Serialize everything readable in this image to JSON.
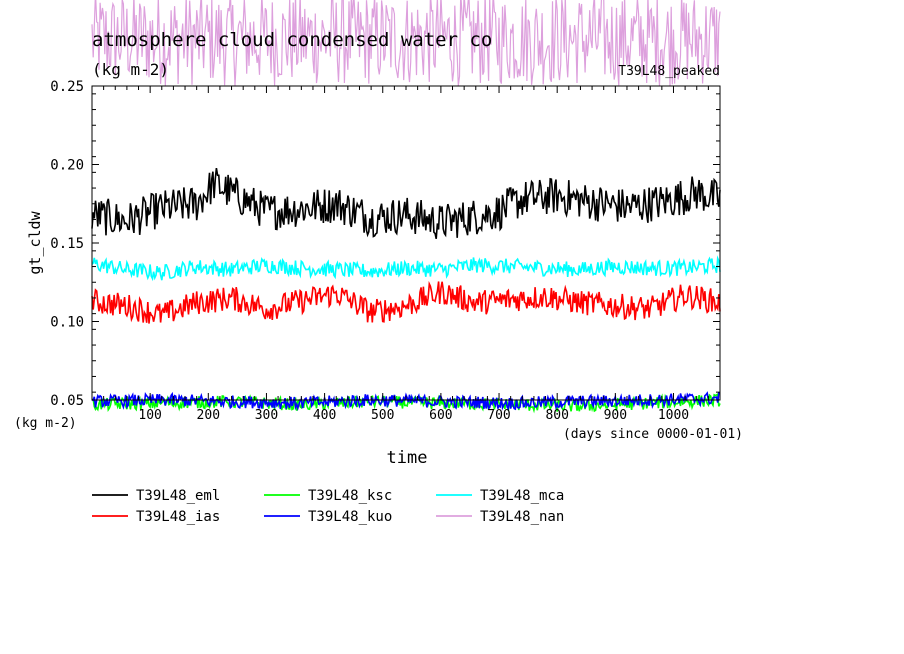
{
  "chart_data": {
    "type": "line",
    "title": "atmosphere cloud condensed water co",
    "title_units": "(kg m-2)",
    "run_label": "T39L48_peaked",
    "ylabel": "gt_cldw",
    "yunits": "(kg m-2)",
    "xlabel": "time",
    "xunits": "(days since 0000-01-01)",
    "xlim": [
      0,
      1080
    ],
    "ylim": [
      0.05,
      0.25
    ],
    "yticks": [
      "0.05",
      "0.10",
      "0.15",
      "0.20",
      "0.25"
    ],
    "ytick_values": [
      0.05,
      0.1,
      0.15,
      0.2,
      0.25
    ],
    "xticks": [
      "100",
      "200",
      "300",
      "400",
      "500",
      "600",
      "700",
      "800",
      "900",
      "1000"
    ],
    "xtick_values": [
      100,
      200,
      300,
      400,
      500,
      600,
      700,
      800,
      900,
      1000
    ],
    "grid": false,
    "legend_position": "bottom",
    "series": [
      {
        "name": "T39L48_eml",
        "color": "#000000",
        "x": [
          0,
          60,
          120,
          180,
          210,
          260,
          300,
          360,
          420,
          480,
          540,
          600,
          660,
          700,
          740,
          800,
          860,
          920,
          980,
          1040,
          1080
        ],
        "values": [
          0.168,
          0.164,
          0.172,
          0.175,
          0.188,
          0.178,
          0.17,
          0.172,
          0.175,
          0.166,
          0.168,
          0.163,
          0.167,
          0.17,
          0.178,
          0.18,
          0.176,
          0.173,
          0.176,
          0.182,
          0.178
        ],
        "noise": 0.012
      },
      {
        "name": "T39L48_ias",
        "color": "#ff0000",
        "x": [
          0,
          60,
          120,
          180,
          240,
          300,
          360,
          420,
          480,
          540,
          600,
          660,
          720,
          780,
          840,
          900,
          960,
          1020,
          1080
        ],
        "values": [
          0.113,
          0.11,
          0.104,
          0.112,
          0.115,
          0.108,
          0.113,
          0.118,
          0.106,
          0.11,
          0.119,
          0.112,
          0.114,
          0.116,
          0.112,
          0.11,
          0.108,
          0.117,
          0.112
        ],
        "noise": 0.008
      },
      {
        "name": "T39L48_mca",
        "color": "#00ffff",
        "x": [
          0,
          60,
          120,
          180,
          240,
          300,
          360,
          420,
          480,
          540,
          600,
          660,
          720,
          780,
          840,
          900,
          960,
          1020,
          1080
        ],
        "values": [
          0.137,
          0.133,
          0.131,
          0.135,
          0.133,
          0.136,
          0.134,
          0.133,
          0.132,
          0.134,
          0.133,
          0.136,
          0.135,
          0.134,
          0.133,
          0.135,
          0.134,
          0.134,
          0.136
        ],
        "noise": 0.005
      },
      {
        "name": "T39L48_ksc",
        "color": "#00ff00",
        "x": [
          0,
          120,
          240,
          360,
          480,
          600,
          720,
          840,
          960,
          1080
        ],
        "values": [
          0.047,
          0.048,
          0.049,
          0.047,
          0.049,
          0.048,
          0.047,
          0.046,
          0.048,
          0.05
        ],
        "noise": 0.004
      },
      {
        "name": "T39L48_kuo",
        "color": "#0000ff",
        "x": [
          0,
          120,
          240,
          360,
          480,
          600,
          720,
          840,
          960,
          1080
        ],
        "values": [
          0.049,
          0.05,
          0.049,
          0.048,
          0.05,
          0.049,
          0.048,
          0.049,
          0.05,
          0.051
        ],
        "noise": 0.004
      },
      {
        "name": "T39L48_nan",
        "color": "#dda0dd",
        "x": [
          0,
          120,
          240,
          360,
          480,
          600,
          720,
          840,
          960,
          1080
        ],
        "values": [
          0.28,
          0.28,
          0.28,
          0.28,
          0.28,
          0.28,
          0.28,
          0.28,
          0.28,
          0.28
        ],
        "noise": 0.03
      }
    ]
  }
}
